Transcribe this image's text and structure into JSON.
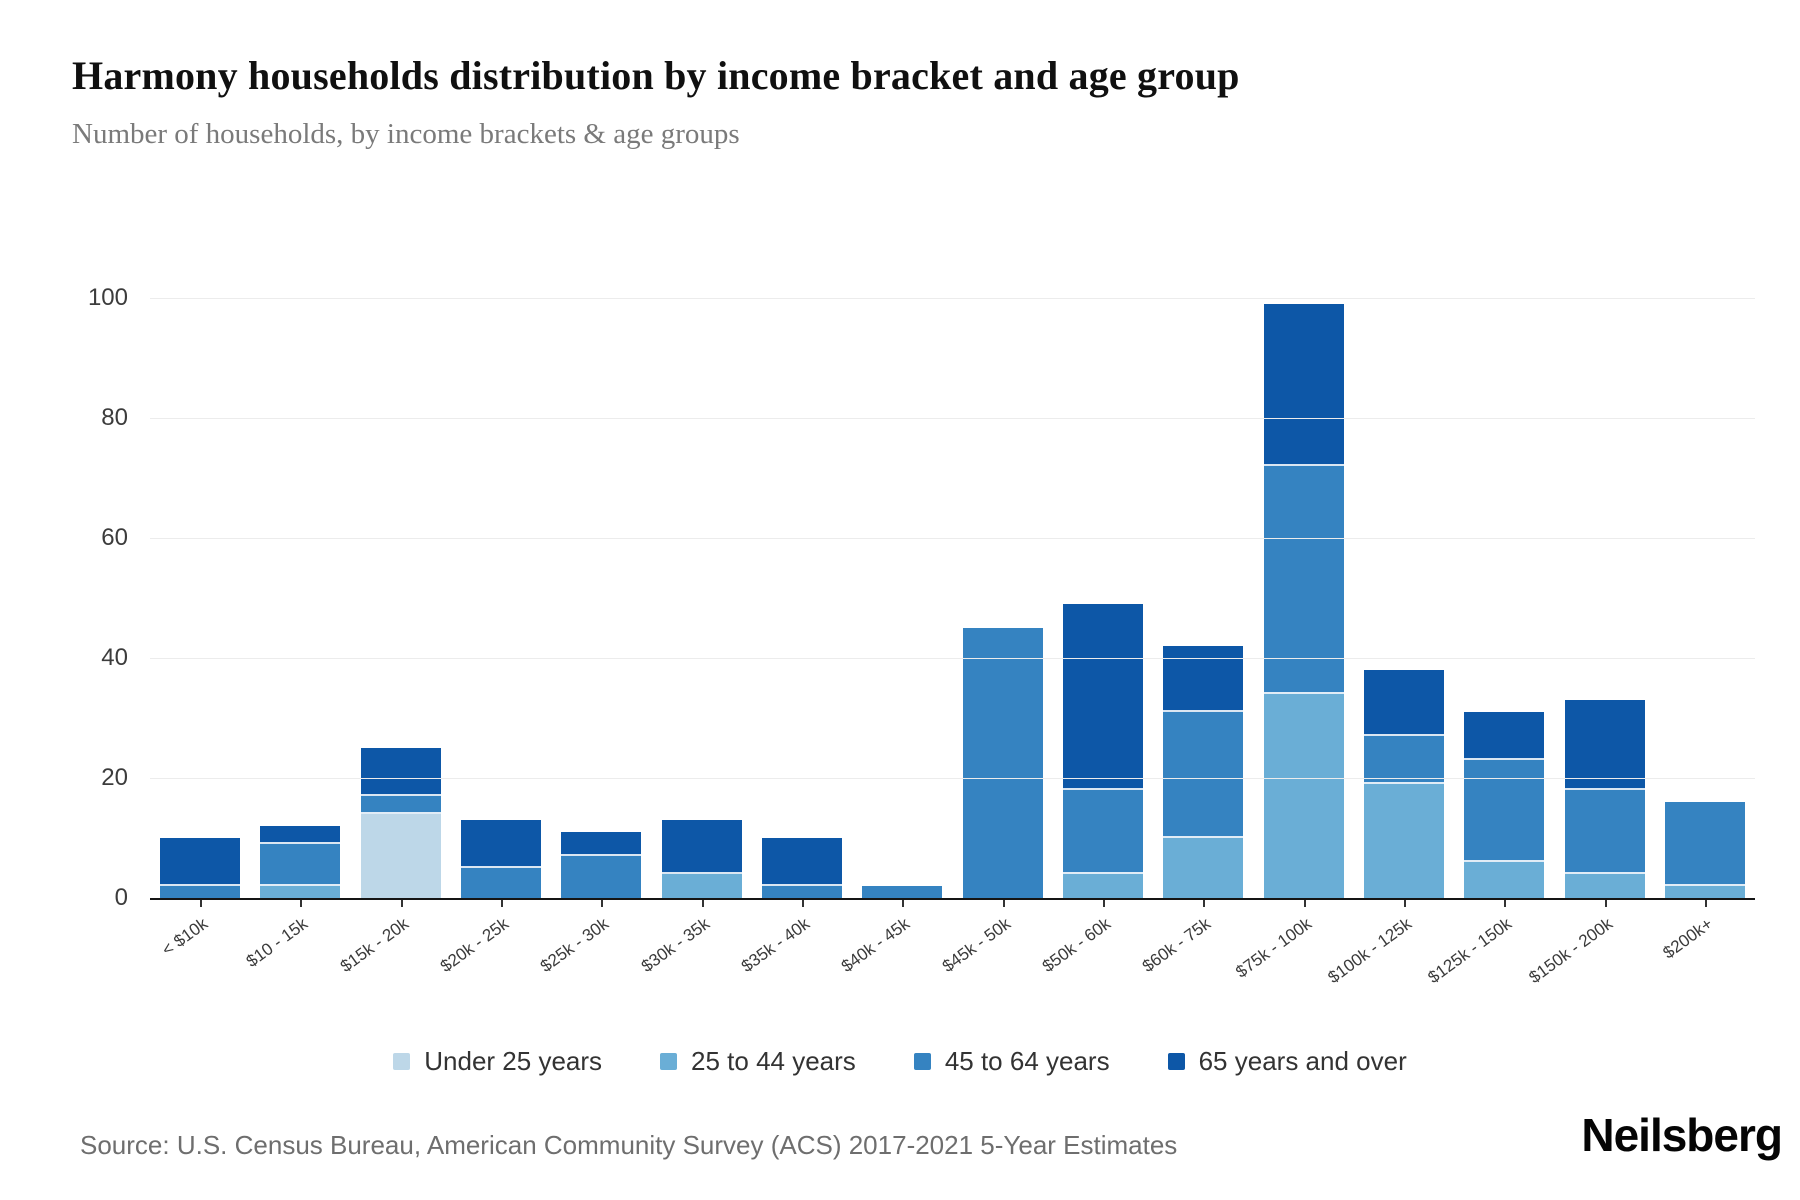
{
  "header": {
    "title": "Harmony households distribution by income bracket and age group",
    "subtitle": "Number of households, by income brackets & age groups"
  },
  "footer": {
    "source": "Source: U.S. Census Bureau, American Community Survey (ACS) 2017-2021 5-Year Estimates",
    "logo_text": "Neilsberg"
  },
  "chart_data": {
    "type": "bar",
    "stacked": true,
    "title": "Harmony households distribution by income bracket and age group",
    "subtitle": "Number of households, by income brackets & age groups",
    "xlabel": "",
    "ylabel": "",
    "ylim": [
      0,
      100
    ],
    "yticks": [
      0,
      20,
      40,
      60,
      80,
      100
    ],
    "grid": true,
    "legend_position": "bottom",
    "categories": [
      "< $10k",
      "$10 - 15k",
      "$15k - 20k",
      "$20k - 25k",
      "$25k - 30k",
      "$30k - 35k",
      "$35k - 40k",
      "$40k - 45k",
      "$45k - 50k",
      "$50k - 60k",
      "$60k - 75k",
      "$75k - 100k",
      "$100k - 125k",
      "$125k - 150k",
      "$150k - 200k",
      "$200k+"
    ],
    "series": [
      {
        "name": "Under 25 years",
        "color": "#bdd7e8",
        "values": [
          0,
          0,
          14,
          0,
          0,
          0,
          0,
          0,
          0,
          0,
          0,
          0,
          0,
          0,
          0,
          0
        ]
      },
      {
        "name": "25 to 44 years",
        "color": "#6aaed6",
        "values": [
          0,
          2,
          0,
          0,
          0,
          4,
          0,
          0,
          0,
          4,
          10,
          34,
          19,
          6,
          4,
          2
        ]
      },
      {
        "name": "45 to 64 years",
        "color": "#3583c1",
        "values": [
          2,
          7,
          3,
          5,
          7,
          0,
          2,
          2,
          45,
          14,
          21,
          38,
          8,
          17,
          14,
          14
        ]
      },
      {
        "name": "65 years and over",
        "color": "#0d57a7",
        "values": [
          8,
          3,
          8,
          8,
          4,
          9,
          8,
          0,
          0,
          31,
          11,
          27,
          11,
          8,
          15,
          0
        ]
      }
    ],
    "totals": [
      10,
      12,
      25,
      13,
      11,
      13,
      10,
      2,
      45,
      49,
      42,
      99,
      38,
      31,
      33,
      16
    ]
  }
}
